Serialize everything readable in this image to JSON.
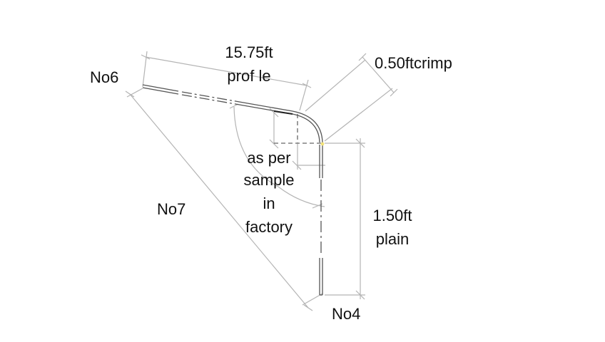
{
  "labels": {
    "top_length_value": "15.75ft",
    "top_length_desc": "prof le",
    "crimp": "0.50ftcrimp",
    "left_end": "No6",
    "diagonal": "No7",
    "angle_note": [
      "as per",
      "sample",
      "in",
      "factory"
    ],
    "vertical_length_value": "1.50ft",
    "vertical_length_desc": "plain",
    "bottom_end": "No4"
  },
  "colors": {
    "profile": "#555555",
    "dimension": "#b0b0b0",
    "hidden": "#666666",
    "marker": "#f2e27a",
    "text": "#111111"
  }
}
